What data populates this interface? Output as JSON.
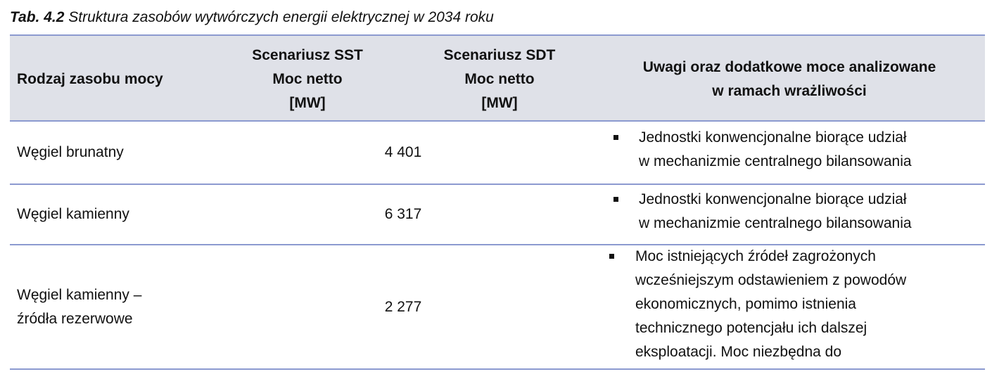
{
  "title": {
    "label": "Tab. 4.2",
    "text": "Struktura zasobów wytwórczych energii elektrycznej w 2034 roku"
  },
  "table": {
    "header": [
      [
        "Rodzaj zasobu mocy"
      ],
      [
        "Scenariusz SST",
        "Moc netto",
        "[MW]"
      ],
      [
        "Scenariusz SDT",
        "Moc netto",
        "[MW]"
      ],
      [
        "Uwagi oraz dodatkowe moce analizowane",
        "w ramach wrażliwości"
      ]
    ],
    "rows": [
      {
        "name": [
          "Węgiel brunatny"
        ],
        "value": "4 401",
        "note": [
          "Jednostki konwencjonalne biorące udział",
          "w mechanizmie centralnego bilansowania"
        ]
      },
      {
        "name": [
          "Węgiel kamienny"
        ],
        "value": "6 317",
        "note": [
          "Jednostki konwencjonalne biorące udział",
          "w mechanizmie centralnego bilansowania"
        ]
      },
      {
        "name": [
          "Węgiel kamienny –",
          "źródła rezerwowe"
        ],
        "value": "2 277",
        "note": [
          "Moc istniejących źródeł zagrożonych",
          "wcześniejszym odstawieniem z powodów",
          "ekonomicznych, pomimo istnienia",
          "technicznego potencjału ich dalszej",
          "eksploatacji. Moc niezbędna do"
        ]
      }
    ]
  }
}
